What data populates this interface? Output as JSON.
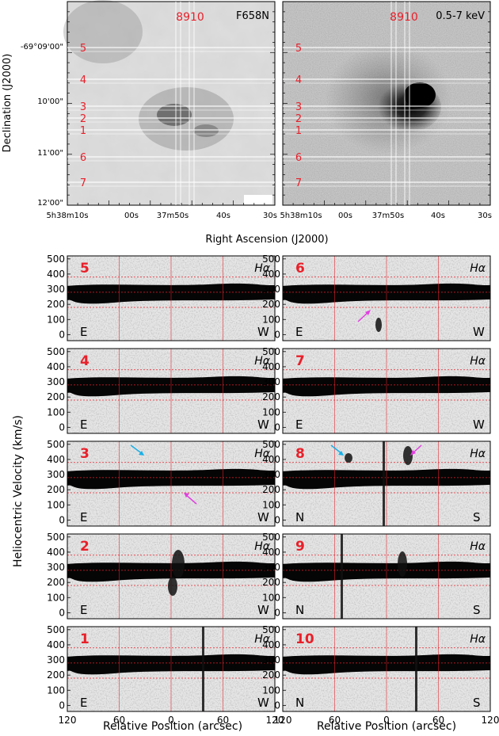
{
  "images": {
    "left": {
      "band": "F658N",
      "slit_labels": [
        "5",
        "4",
        "3",
        "2",
        "1",
        "6",
        "7"
      ],
      "vslit_labels": "8910"
    },
    "right": {
      "band": "0.5-7 keV",
      "slit_labels": [
        "5",
        "4",
        "3",
        "2",
        "1",
        "6",
        "7"
      ],
      "vslit_labels": "8910"
    },
    "dec_label": "Declination (J2000)",
    "dec_ticks": [
      "-69°09'00\"",
      "10'00\"",
      "11'00\"",
      "12'00\""
    ],
    "ra_label": "Right Ascension (J2000)",
    "ra_ticks_left": [
      "5h38m10s",
      "00s",
      "37m50s",
      "40s",
      "30s"
    ],
    "ra_ticks_right": [
      "5h38m10s",
      "00s",
      "37m50s",
      "40s",
      "30s"
    ]
  },
  "spectra": {
    "ylabel": "Heliocentric Velocity (km/s)",
    "xlabel": "Relative Position (arcsec)",
    "line": "Hα",
    "yticks": [
      "0",
      "100",
      "200",
      "300",
      "400",
      "500"
    ],
    "xticks": [
      "120",
      "60",
      "0",
      "60",
      "120"
    ],
    "panels": [
      {
        "id": "5",
        "left": "E",
        "right": "W"
      },
      {
        "id": "6",
        "left": "E",
        "right": "W"
      },
      {
        "id": "4",
        "left": "E",
        "right": "W"
      },
      {
        "id": "7",
        "left": "E",
        "right": "W"
      },
      {
        "id": "3",
        "left": "E",
        "right": "W"
      },
      {
        "id": "8",
        "left": "N",
        "right": "S"
      },
      {
        "id": "2",
        "left": "E",
        "right": "W"
      },
      {
        "id": "9",
        "left": "N",
        "right": "S"
      },
      {
        "id": "1",
        "left": "E",
        "right": "W"
      },
      {
        "id": "10",
        "left": "N",
        "right": "S"
      }
    ]
  },
  "colors": {
    "label_red": "#e8202a",
    "cyan_arrow": "#1ab0e8",
    "magenta_arrow": "#e040e0"
  }
}
